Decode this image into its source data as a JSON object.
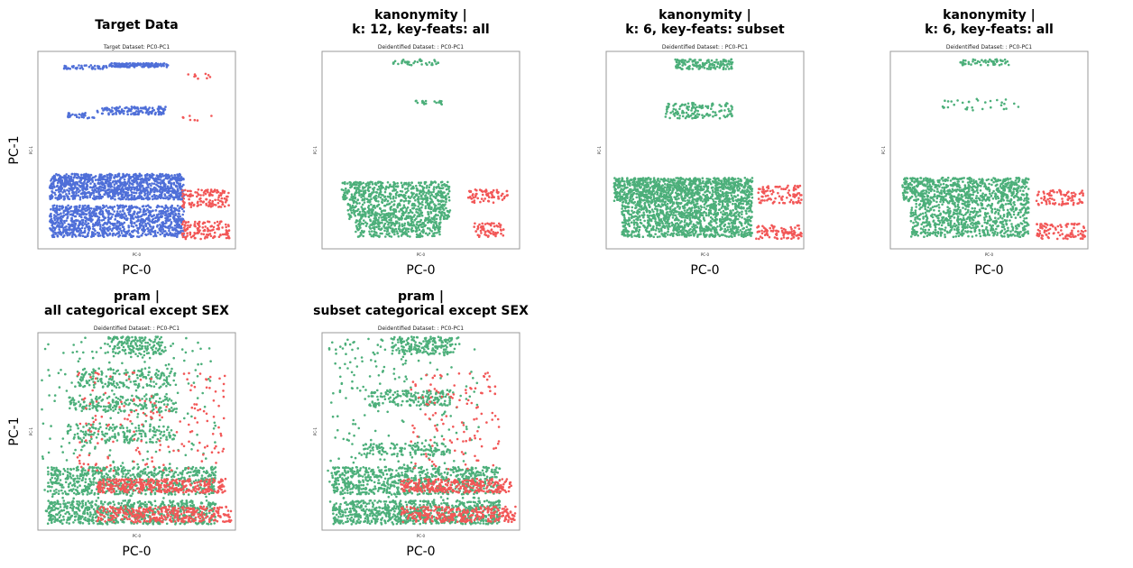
{
  "figure": {
    "row_ylabel": "PC-1",
    "panel_xlabel": "PC-0"
  },
  "colors": {
    "class_a": "#4f6fd8",
    "class_b": "#4caf7a",
    "class_c": "#f25757"
  },
  "chart_data": [
    {
      "type": "scatter",
      "title_lines": [
        "Target Data"
      ],
      "subtitle": "Target Dataset: PC0-PC1",
      "xlabel": "PC-0",
      "ylabel": "PC-1",
      "inner_xlabel": "PC-0",
      "inner_ylabel": "PC-1",
      "xlim": [
        0,
        10
      ],
      "ylim": [
        0,
        10
      ],
      "grid": false,
      "series": [
        {
          "color": "#4f6fd8",
          "clusters": [
            {
              "x": [
                3.6,
                6.6
              ],
              "y": [
                9.2,
                9.4
              ],
              "n": 160
            },
            {
              "x": [
                1.3,
                3.5
              ],
              "y": [
                9.1,
                9.3
              ],
              "n": 45
            },
            {
              "x": [
                3.0,
                6.5
              ],
              "y": [
                6.8,
                7.2
              ],
              "n": 150
            },
            {
              "x": [
                1.5,
                3.0
              ],
              "y": [
                6.6,
                6.9
              ],
              "n": 30
            },
            {
              "x": [
                0.6,
                7.4
              ],
              "y": [
                2.5,
                3.8
              ],
              "n": 1100
            },
            {
              "x": [
                0.6,
                7.4
              ],
              "y": [
                0.6,
                2.2
              ],
              "n": 1050
            }
          ]
        },
        {
          "color": "#f25757",
          "clusters": [
            {
              "x": [
                7.6,
                8.8
              ],
              "y": [
                8.6,
                9.0
              ],
              "n": 9
            },
            {
              "x": [
                7.3,
                8.8
              ],
              "y": [
                6.4,
                6.9
              ],
              "n": 7
            },
            {
              "x": [
                7.3,
                9.7
              ],
              "y": [
                2.1,
                3.0
              ],
              "n": 130
            },
            {
              "x": [
                7.3,
                9.7
              ],
              "y": [
                0.5,
                1.4
              ],
              "n": 130
            }
          ]
        }
      ]
    },
    {
      "type": "scatter",
      "title_lines": [
        "kanonymity |",
        "k: 12, key-feats: all"
      ],
      "subtitle": "Deidentified Dataset: : PC0-PC1",
      "xlabel": "PC-0",
      "ylabel": "",
      "inner_xlabel": "PC-0",
      "inner_ylabel": "PC-1",
      "xlim": [
        0,
        10
      ],
      "ylim": [
        0,
        10
      ],
      "grid": false,
      "series": [
        {
          "color": "#4caf7a",
          "clusters": [
            {
              "x": [
                3.6,
                6.0
              ],
              "y": [
                9.3,
                9.6
              ],
              "n": 40
            },
            {
              "x": [
                4.5,
                6.2
              ],
              "y": [
                7.3,
                7.5
              ],
              "n": 18
            },
            {
              "x": [
                1.0,
                6.5
              ],
              "y": [
                2.4,
                3.4
              ],
              "n": 420
            },
            {
              "x": [
                1.3,
                6.5
              ],
              "y": [
                1.5,
                2.4
              ],
              "n": 360
            },
            {
              "x": [
                1.7,
                6.0
              ],
              "y": [
                0.6,
                1.5
              ],
              "n": 300
            }
          ]
        },
        {
          "color": "#f25757",
          "clusters": [
            {
              "x": [
                7.4,
                9.4
              ],
              "y": [
                2.3,
                3.0
              ],
              "n": 75
            },
            {
              "x": [
                7.7,
                9.2
              ],
              "y": [
                0.6,
                1.3
              ],
              "n": 65
            }
          ]
        }
      ]
    },
    {
      "type": "scatter",
      "title_lines": [
        "kanonymity |",
        "k: 6, key-feats: subset"
      ],
      "subtitle": "Deidentified Dataset: : PC0-PC1",
      "xlabel": "PC-0",
      "ylabel": "",
      "inner_xlabel": "PC-0",
      "inner_ylabel": "PC-1",
      "xlim": [
        0,
        10
      ],
      "ylim": [
        0,
        10
      ],
      "grid": false,
      "series": [
        {
          "color": "#4caf7a",
          "clusters": [
            {
              "x": [
                3.5,
                6.4
              ],
              "y": [
                9.1,
                9.6
              ],
              "n": 140
            },
            {
              "x": [
                3.0,
                6.4
              ],
              "y": [
                6.6,
                7.4
              ],
              "n": 140
            },
            {
              "x": [
                0.4,
                7.4
              ],
              "y": [
                2.4,
                3.6
              ],
              "n": 1050
            },
            {
              "x": [
                0.8,
                7.4
              ],
              "y": [
                0.6,
                2.4
              ],
              "n": 1050
            }
          ]
        },
        {
          "color": "#f25757",
          "clusters": [
            {
              "x": [
                7.7,
                9.9
              ],
              "y": [
                2.3,
                3.2
              ],
              "n": 95
            },
            {
              "x": [
                7.6,
                9.9
              ],
              "y": [
                0.5,
                1.2
              ],
              "n": 95
            }
          ]
        }
      ]
    },
    {
      "type": "scatter",
      "title_lines": [
        "kanonymity |",
        "k: 6, key-feats: all"
      ],
      "subtitle": "Deidentified Dataset: : PC0-PC1",
      "xlabel": "PC-0",
      "ylabel": "",
      "inner_xlabel": "PC-0",
      "inner_ylabel": "PC-1",
      "xlim": [
        0,
        10
      ],
      "ylim": [
        0,
        10
      ],
      "grid": false,
      "series": [
        {
          "color": "#4caf7a",
          "clusters": [
            {
              "x": [
                3.5,
                6.0
              ],
              "y": [
                9.3,
                9.6
              ],
              "n": 55
            },
            {
              "x": [
                2.6,
                6.5
              ],
              "y": [
                7.0,
                7.6
              ],
              "n": 32
            },
            {
              "x": [
                0.6,
                7.0
              ],
              "y": [
                2.4,
                3.6
              ],
              "n": 700
            },
            {
              "x": [
                1.0,
                7.0
              ],
              "y": [
                0.6,
                2.4
              ],
              "n": 650
            }
          ]
        },
        {
          "color": "#f25757",
          "clusters": [
            {
              "x": [
                7.4,
                9.8
              ],
              "y": [
                2.2,
                3.0
              ],
              "n": 90
            },
            {
              "x": [
                7.4,
                9.9
              ],
              "y": [
                0.5,
                1.3
              ],
              "n": 100
            }
          ]
        }
      ]
    },
    {
      "type": "scatter",
      "title_lines": [
        "pram |",
        "all categorical except SEX"
      ],
      "subtitle": "Deidentified Dataset: : PC0-PC1",
      "xlabel": "PC-0",
      "ylabel": "PC-1",
      "inner_xlabel": "PC-0",
      "inner_ylabel": "PC-1",
      "xlim": [
        0,
        10
      ],
      "ylim": [
        0,
        10
      ],
      "grid": false,
      "series": [
        {
          "color": "#4caf7a",
          "clusters": [
            {
              "x": [
                3.5,
                6.5
              ],
              "y": [
                8.9,
                9.8
              ],
              "n": 150
            },
            {
              "x": [
                2.0,
                7.0
              ],
              "y": [
                7.2,
                8.2
              ],
              "n": 170
            },
            {
              "x": [
                1.5,
                7.0
              ],
              "y": [
                6.0,
                6.9
              ],
              "n": 170
            },
            {
              "x": [
                1.5,
                7.0
              ],
              "y": [
                4.4,
                5.4
              ],
              "n": 170
            },
            {
              "x": [
                0.5,
                9.0
              ],
              "y": [
                1.8,
                3.2
              ],
              "n": 650
            },
            {
              "x": [
                0.5,
                9.0
              ],
              "y": [
                0.3,
                1.5
              ],
              "n": 650
            },
            {
              "x": [
                0.2,
                9.0
              ],
              "y": [
                0.3,
                9.8
              ],
              "n": 300
            }
          ]
        },
        {
          "color": "#f25757",
          "clusters": [
            {
              "x": [
                3.0,
                9.5
              ],
              "y": [
                1.9,
                2.6
              ],
              "n": 360
            },
            {
              "x": [
                3.0,
                9.8
              ],
              "y": [
                0.4,
                1.2
              ],
              "n": 360
            },
            {
              "x": [
                2.0,
                9.5
              ],
              "y": [
                3.0,
                8.0
              ],
              "n": 170
            }
          ]
        }
      ]
    },
    {
      "type": "scatter",
      "title_lines": [
        "pram |",
        "subset categorical except SEX"
      ],
      "subtitle": "Deidentified Dataset: : PC0-PC1",
      "xlabel": "PC-0",
      "ylabel": "",
      "inner_xlabel": "PC-0",
      "inner_ylabel": "PC-1",
      "xlim": [
        0,
        10
      ],
      "ylim": [
        0,
        10
      ],
      "grid": false,
      "series": [
        {
          "color": "#4caf7a",
          "clusters": [
            {
              "x": [
                3.5,
                6.6
              ],
              "y": [
                8.9,
                9.8
              ],
              "n": 170
            },
            {
              "x": [
                2.5,
                6.5
              ],
              "y": [
                6.3,
                7.1
              ],
              "n": 160
            },
            {
              "x": [
                2.0,
                6.5
              ],
              "y": [
                3.8,
                4.4
              ],
              "n": 120
            },
            {
              "x": [
                0.5,
                9.0
              ],
              "y": [
                1.8,
                3.2
              ],
              "n": 700
            },
            {
              "x": [
                0.5,
                9.0
              ],
              "y": [
                0.3,
                1.5
              ],
              "n": 700
            },
            {
              "x": [
                0.3,
                8.0
              ],
              "y": [
                0.3,
                9.8
              ],
              "n": 320
            }
          ]
        },
        {
          "color": "#f25757",
          "clusters": [
            {
              "x": [
                4.0,
                9.6
              ],
              "y": [
                1.9,
                2.6
              ],
              "n": 300
            },
            {
              "x": [
                4.0,
                9.8
              ],
              "y": [
                0.4,
                1.2
              ],
              "n": 300
            },
            {
              "x": [
                4.5,
                9.0
              ],
              "y": [
                3.0,
                8.0
              ],
              "n": 120
            }
          ]
        }
      ]
    }
  ]
}
